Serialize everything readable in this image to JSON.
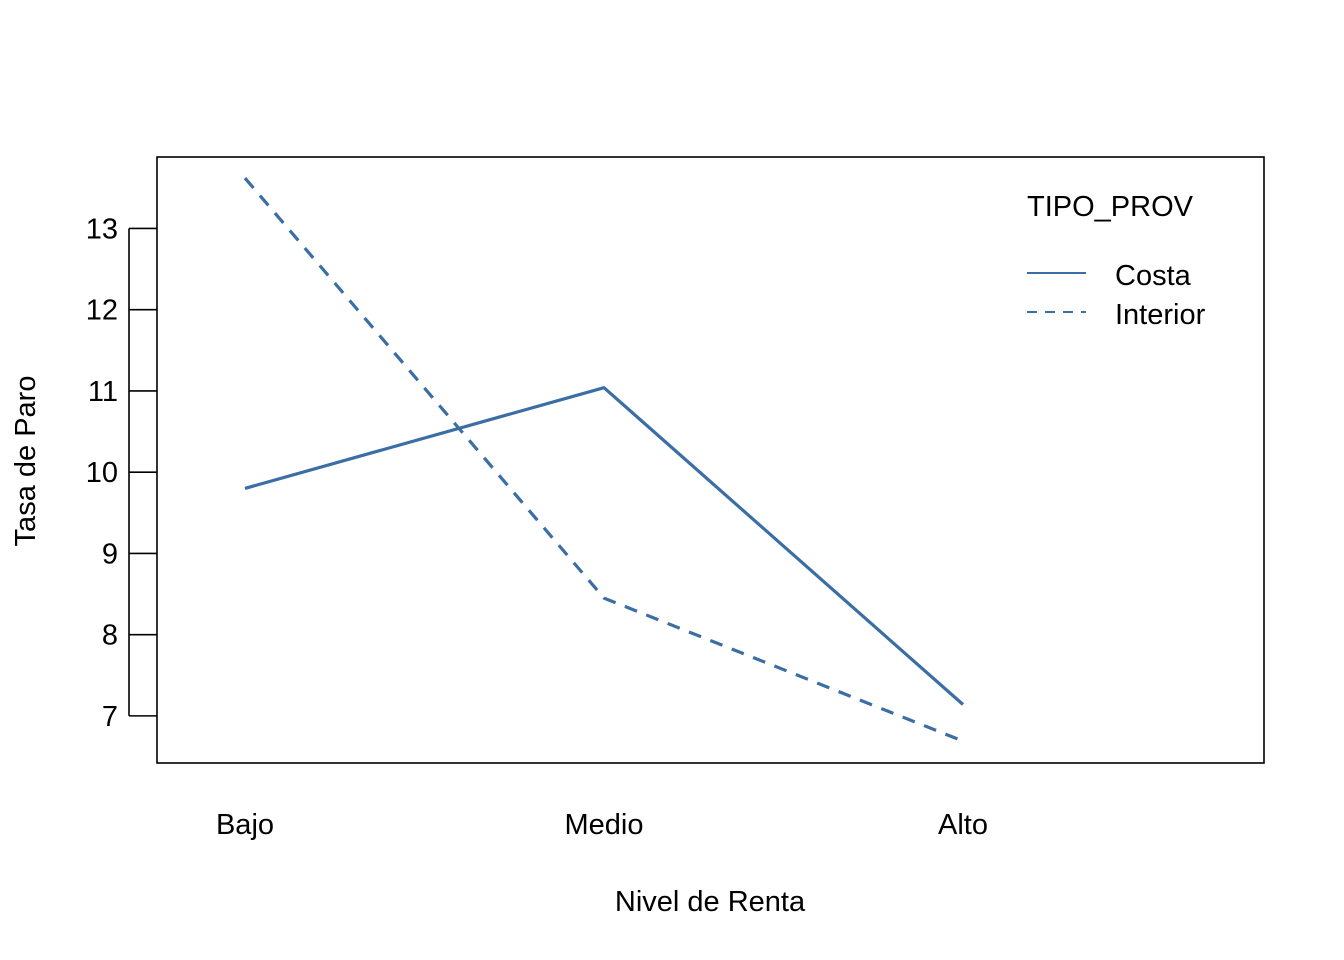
{
  "chart_data": {
    "type": "line",
    "title": "",
    "xlabel": "Nivel de Renta",
    "ylabel": "Tasa de Paro",
    "categories": [
      "Bajo",
      "Medio",
      "Alto"
    ],
    "ylim": [
      6.42,
      13.88
    ],
    "yticks": [
      7,
      8,
      9,
      10,
      11,
      12,
      13
    ],
    "legend": {
      "title": "TIPO_PROV",
      "position": "top-right"
    },
    "series": [
      {
        "name": "Costa",
        "line_style": "solid",
        "color": "#3A6EA5",
        "values": [
          9.8,
          11.04,
          7.14
        ]
      },
      {
        "name": "Interior",
        "line_style": "dashed",
        "color": "#3A6EA5",
        "values": [
          13.62,
          8.45,
          6.69
        ]
      }
    ]
  }
}
